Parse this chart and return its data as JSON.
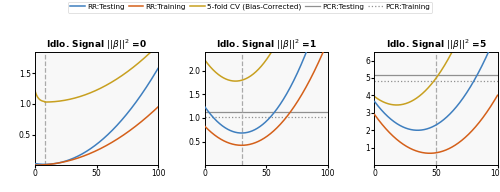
{
  "panels": [
    {
      "title": "Idlo. Signal $||\\beta||^2$ =0",
      "vline": 8,
      "pcr_testing": null,
      "pcr_training": null,
      "show_pcr_lines": false,
      "ylim": [
        0,
        1.85
      ],
      "yticks": [
        0.5,
        1.0,
        1.5
      ]
    },
    {
      "title": "Idlo. Signal $||\\beta||^2$ =1",
      "vline": 30,
      "pcr_testing": 1.12,
      "pcr_training": 1.02,
      "show_pcr_lines": true,
      "ylim": [
        0,
        2.4
      ],
      "yticks": [
        0.5,
        1.0,
        1.5,
        2.0
      ]
    },
    {
      "title": "Idlo. Signal $||\\beta||^2$ =5",
      "vline": 50,
      "pcr_testing": 5.15,
      "pcr_training": 4.85,
      "show_pcr_lines": true,
      "ylim": [
        0,
        6.5
      ],
      "yticks": [
        1,
        2,
        3,
        4,
        5,
        6
      ]
    }
  ],
  "colors": {
    "rr_testing": "#3F7FBF",
    "rr_training": "#D4601A",
    "cv": "#C8A020",
    "pcr_testing": "#909090",
    "pcr_training": "#909090"
  },
  "xlim": [
    0,
    100
  ],
  "xticks": [
    0,
    50,
    100
  ]
}
